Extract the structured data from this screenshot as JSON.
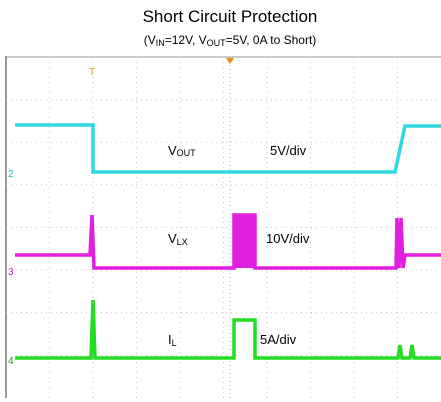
{
  "header": {
    "title": "Short Circuit Protection",
    "subtitle": [
      "(V",
      "IN",
      "=12V, V",
      "OUT",
      "=5V, 0A to Short)"
    ]
  },
  "markers": {
    "trigger": "T",
    "channels": [
      "2",
      "3",
      "4"
    ]
  },
  "traces": [
    {
      "label": [
        "V",
        "OUT"
      ],
      "scale": "5V/div"
    },
    {
      "label": [
        "V",
        "LX"
      ],
      "scale": "10V/div"
    },
    {
      "label": [
        "I",
        "L"
      ],
      "scale": "5A/div"
    }
  ]
}
